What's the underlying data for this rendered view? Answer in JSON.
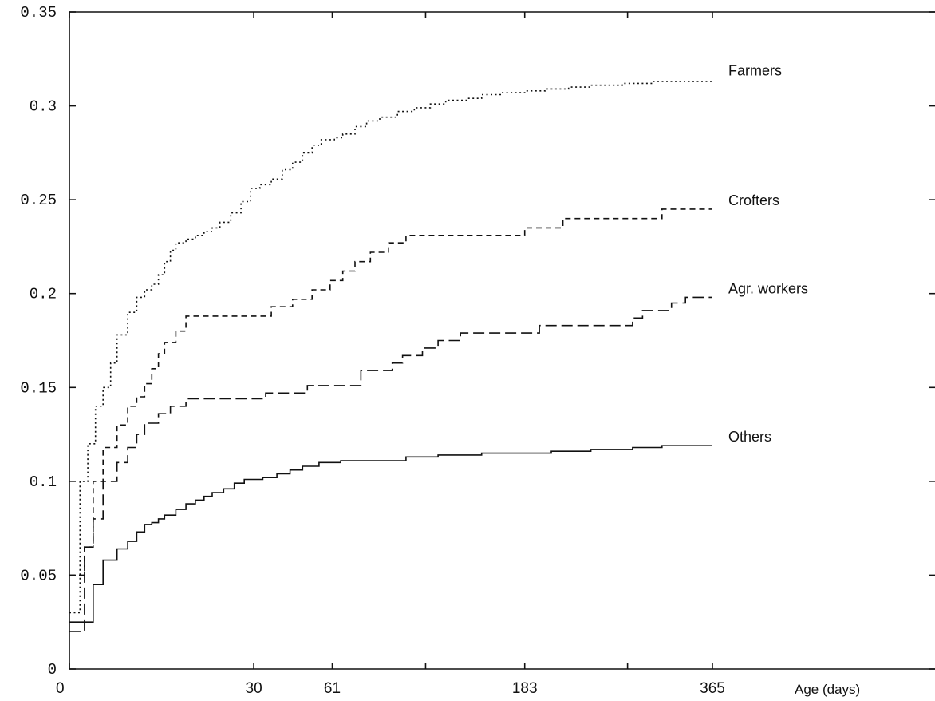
{
  "chart_data": {
    "type": "line",
    "title": "",
    "xlabel": "Age (days)",
    "ylabel": "",
    "ylim": [
      0,
      0.35
    ],
    "y_ticks": [
      0,
      0.05,
      0.1,
      0.15,
      0.2,
      0.25,
      0.3,
      0.35
    ],
    "y_tick_labels": [
      "0",
      "0.05",
      "0.1",
      "0.15",
      "0.2",
      "0.25",
      "0.3",
      "0.35"
    ],
    "x_ticks": [
      0,
      30,
      61,
      183,
      365
    ],
    "x_tick_labels": [
      "0",
      "30",
      "61",
      "183",
      "365"
    ],
    "x_scale": "sqrt",
    "grid": false,
    "legend": "direct labels at right end of each line",
    "series": [
      {
        "name": "Farmers",
        "line_style": "dotted",
        "points": [
          [
            0,
            0.03
          ],
          [
            0.1,
            0.1
          ],
          [
            0.3,
            0.12
          ],
          [
            0.6,
            0.14
          ],
          [
            1,
            0.15
          ],
          [
            1.5,
            0.163
          ],
          [
            2,
            0.178
          ],
          [
            3,
            0.19
          ],
          [
            4,
            0.198
          ],
          [
            5,
            0.202
          ],
          [
            6,
            0.205
          ],
          [
            7,
            0.21
          ],
          [
            8,
            0.217
          ],
          [
            9,
            0.223
          ],
          [
            10,
            0.227
          ],
          [
            12,
            0.229
          ],
          [
            14,
            0.231
          ],
          [
            16,
            0.233
          ],
          [
            18,
            0.235
          ],
          [
            20,
            0.238
          ],
          [
            23,
            0.243
          ],
          [
            26,
            0.249
          ],
          [
            29,
            0.256
          ],
          [
            32,
            0.258
          ],
          [
            36,
            0.261
          ],
          [
            40,
            0.266
          ],
          [
            44,
            0.27
          ],
          [
            48,
            0.275
          ],
          [
            52,
            0.279
          ],
          [
            56,
            0.282
          ],
          [
            62,
            0.283
          ],
          [
            66,
            0.285
          ],
          [
            72,
            0.289
          ],
          [
            78,
            0.292
          ],
          [
            85,
            0.294
          ],
          [
            95,
            0.297
          ],
          [
            105,
            0.299
          ],
          [
            115,
            0.301
          ],
          [
            125,
            0.303
          ],
          [
            140,
            0.304
          ],
          [
            150,
            0.306
          ],
          [
            165,
            0.307
          ],
          [
            183,
            0.308
          ],
          [
            200,
            0.309
          ],
          [
            220,
            0.31
          ],
          [
            240,
            0.311
          ],
          [
            270,
            0.312
          ],
          [
            300,
            0.313
          ],
          [
            330,
            0.313
          ],
          [
            365,
            0.314
          ]
        ]
      },
      {
        "name": "Crofters",
        "line_style": "dashed",
        "points": [
          [
            0,
            0.05
          ],
          [
            0.2,
            0.065
          ],
          [
            0.5,
            0.1
          ],
          [
            1,
            0.118
          ],
          [
            2,
            0.13
          ],
          [
            3,
            0.14
          ],
          [
            4,
            0.145
          ],
          [
            5,
            0.152
          ],
          [
            6,
            0.16
          ],
          [
            7,
            0.168
          ],
          [
            8,
            0.174
          ],
          [
            10,
            0.18
          ],
          [
            12,
            0.188
          ],
          [
            20,
            0.188
          ],
          [
            30,
            0.188
          ],
          [
            36,
            0.193
          ],
          [
            44,
            0.197
          ],
          [
            52,
            0.202
          ],
          [
            60,
            0.207
          ],
          [
            66,
            0.212
          ],
          [
            72,
            0.217
          ],
          [
            80,
            0.222
          ],
          [
            90,
            0.227
          ],
          [
            100,
            0.231
          ],
          [
            130,
            0.231
          ],
          [
            160,
            0.231
          ],
          [
            183,
            0.235
          ],
          [
            205,
            0.235
          ],
          [
            215,
            0.24
          ],
          [
            260,
            0.24
          ],
          [
            300,
            0.24
          ],
          [
            310,
            0.245
          ],
          [
            365,
            0.245
          ]
        ]
      },
      {
        "name": "Agr. workers",
        "line_style": "long-dashed",
        "points": [
          [
            0,
            0.02
          ],
          [
            0.2,
            0.065
          ],
          [
            0.5,
            0.08
          ],
          [
            1,
            0.1
          ],
          [
            2,
            0.11
          ],
          [
            3,
            0.118
          ],
          [
            4,
            0.125
          ],
          [
            5,
            0.131
          ],
          [
            7,
            0.136
          ],
          [
            9,
            0.14
          ],
          [
            12,
            0.144
          ],
          [
            20,
            0.144
          ],
          [
            30,
            0.144
          ],
          [
            34,
            0.147
          ],
          [
            44,
            0.147
          ],
          [
            50,
            0.151
          ],
          [
            70,
            0.151
          ],
          [
            75,
            0.159
          ],
          [
            85,
            0.159
          ],
          [
            92,
            0.163
          ],
          [
            98,
            0.167
          ],
          [
            110,
            0.171
          ],
          [
            120,
            0.175
          ],
          [
            135,
            0.179
          ],
          [
            183,
            0.179
          ],
          [
            195,
            0.183
          ],
          [
            240,
            0.183
          ],
          [
            280,
            0.187
          ],
          [
            290,
            0.191
          ],
          [
            310,
            0.191
          ],
          [
            320,
            0.195
          ],
          [
            335,
            0.198
          ],
          [
            365,
            0.198
          ]
        ]
      },
      {
        "name": "Others",
        "line_style": "solid",
        "points": [
          [
            0,
            0.025
          ],
          [
            0.5,
            0.045
          ],
          [
            1,
            0.058
          ],
          [
            2,
            0.064
          ],
          [
            3,
            0.068
          ],
          [
            4,
            0.073
          ],
          [
            5,
            0.077
          ],
          [
            6,
            0.078
          ],
          [
            7,
            0.08
          ],
          [
            8,
            0.082
          ],
          [
            10,
            0.085
          ],
          [
            12,
            0.088
          ],
          [
            14,
            0.09
          ],
          [
            16,
            0.092
          ],
          [
            18,
            0.094
          ],
          [
            21,
            0.096
          ],
          [
            24,
            0.099
          ],
          [
            27,
            0.101
          ],
          [
            33,
            0.102
          ],
          [
            38,
            0.104
          ],
          [
            43,
            0.106
          ],
          [
            48,
            0.108
          ],
          [
            55,
            0.11
          ],
          [
            65,
            0.111
          ],
          [
            90,
            0.111
          ],
          [
            100,
            0.113
          ],
          [
            120,
            0.114
          ],
          [
            150,
            0.115
          ],
          [
            183,
            0.115
          ],
          [
            205,
            0.116
          ],
          [
            240,
            0.117
          ],
          [
            280,
            0.118
          ],
          [
            310,
            0.119
          ],
          [
            365,
            0.119
          ]
        ]
      }
    ]
  }
}
